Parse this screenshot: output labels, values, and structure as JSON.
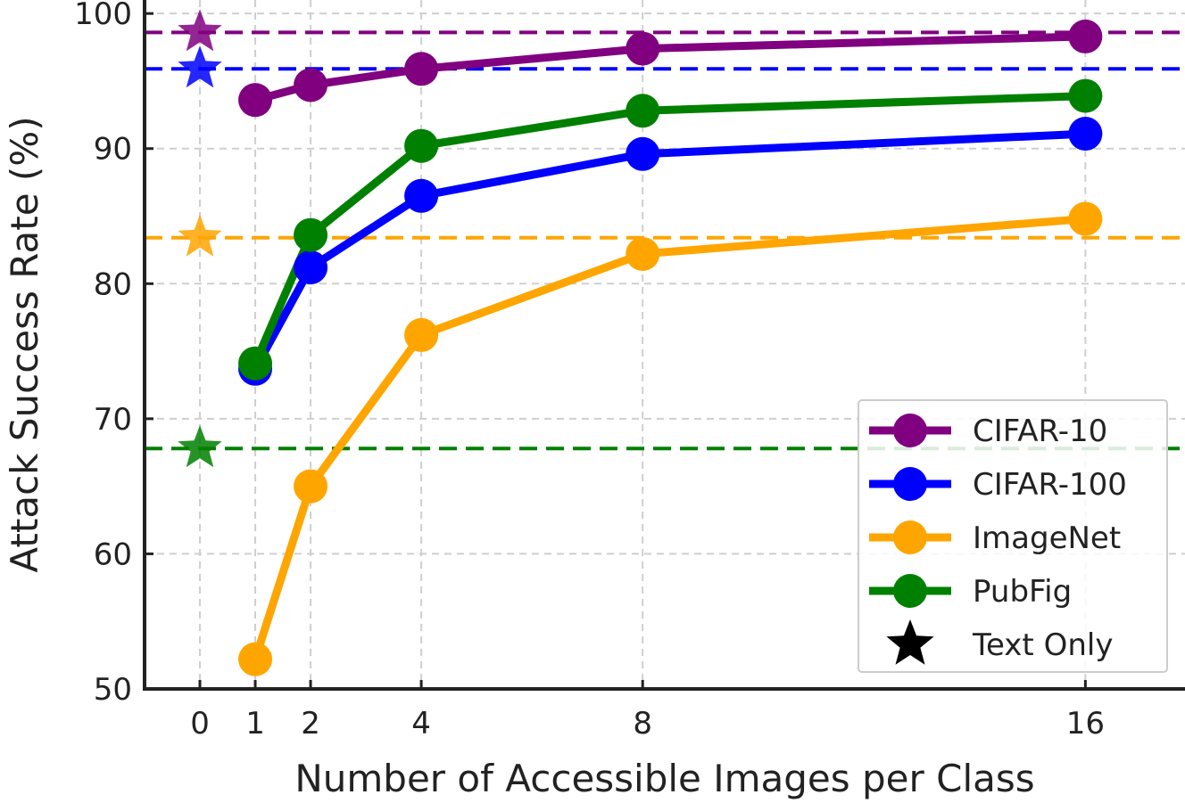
{
  "chart_data": {
    "type": "line",
    "xlabel": "Number of Accessible Images per Class",
    "ylabel": "Attack Success Rate (%)",
    "x": [
      1,
      2,
      4,
      8,
      16
    ],
    "xticks": [
      0,
      1,
      2,
      4,
      8,
      16
    ],
    "xtick_labels": [
      "0",
      "1",
      "2",
      "4",
      "8",
      "16"
    ],
    "xlim": [
      -1,
      17.8
    ],
    "yticks": [
      50,
      60,
      70,
      80,
      90,
      100
    ],
    "ytick_labels": [
      "50",
      "60",
      "70",
      "80",
      "90",
      "100"
    ],
    "ylim": [
      50,
      101
    ],
    "grid": true,
    "legend_position": "lower-right",
    "series": [
      {
        "name": "CIFAR-10",
        "color": "#800080",
        "values": [
          93.6,
          94.7,
          95.9,
          97.4,
          98.3
        ],
        "text_only": 98.6
      },
      {
        "name": "CIFAR-100",
        "color": "#0000ff",
        "values": [
          73.7,
          81.2,
          86.5,
          89.6,
          91.1
        ],
        "text_only": 95.9
      },
      {
        "name": "ImageNet",
        "color": "#ffa500",
        "values": [
          52.2,
          65.0,
          76.2,
          82.2,
          84.8
        ],
        "text_only": 83.4
      },
      {
        "name": "PubFig",
        "color": "#008000",
        "values": [
          74.1,
          83.6,
          90.2,
          92.8,
          93.9
        ],
        "text_only": 67.8
      }
    ],
    "text_only_label": "Text Only",
    "text_only_x": 0
  }
}
